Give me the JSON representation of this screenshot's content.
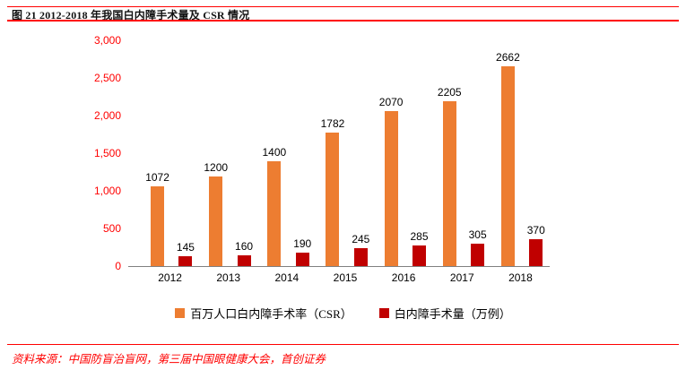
{
  "chart_data": {
    "type": "bar",
    "title": "图 21 2012-2018 年我国白内障手术量及 CSR 情况",
    "categories": [
      "2012",
      "2013",
      "2014",
      "2015",
      "2016",
      "2017",
      "2018"
    ],
    "series": [
      {
        "name": "百万人口白内障手术率（CSR）",
        "color": "#ED7D31",
        "values": [
          1072,
          1200,
          1400,
          1782,
          2070,
          2205,
          2662
        ]
      },
      {
        "name": "白内障手术量（万例）",
        "color": "#C00000",
        "values": [
          145,
          160,
          190,
          245,
          285,
          305,
          370
        ]
      }
    ],
    "xlabel": "",
    "ylabel": "",
    "ylim": [
      0,
      3000
    ],
    "y_ticks": [
      {
        "label": "3,000",
        "value": 3000
      },
      {
        "label": "2,500",
        "value": 2500
      },
      {
        "label": "2,000",
        "value": 2000
      },
      {
        "label": "1,500",
        "value": 1500
      },
      {
        "label": "1,000",
        "value": 1000
      },
      {
        "label": "500",
        "value": 500
      },
      {
        "label": "0",
        "value": 0
      }
    ],
    "grid": false,
    "legend_position": "bottom"
  },
  "footer": {
    "source": "资料来源：中国防盲治盲网，第三届中国眼健康大会，首创证券"
  },
  "colors": {
    "accent_red": "#FF0000",
    "y_axis_label": "#FF0000",
    "source_text": "#FF0000",
    "axis_line": "#808080",
    "bar_orange": "#ED7D31",
    "bar_dark_red": "#C00000"
  }
}
